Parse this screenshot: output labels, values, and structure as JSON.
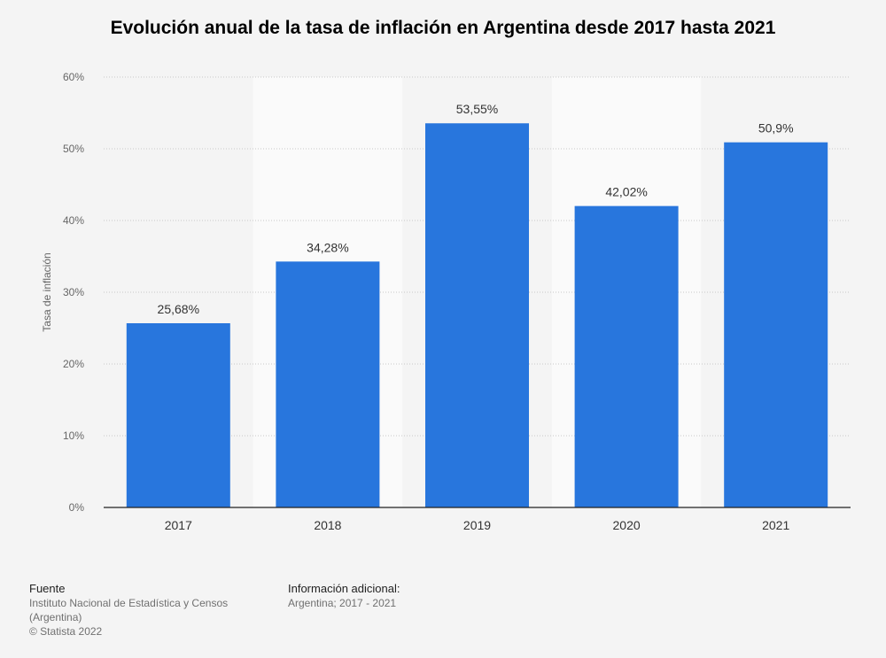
{
  "chart_data": {
    "type": "bar",
    "title": "Evolución anual de la tasa de inflación en Argentina desde 2017 hasta 2021",
    "xlabel": "",
    "ylabel": "Tasa de inflación",
    "categories": [
      "2017",
      "2018",
      "2019",
      "2020",
      "2021"
    ],
    "values": [
      25.68,
      34.28,
      53.55,
      42.02,
      50.9
    ],
    "data_labels": [
      "25,68%",
      "34,28%",
      "53,55%",
      "42,02%",
      "50,9%"
    ],
    "ylim": [
      0,
      60
    ],
    "yticks": [
      0,
      10,
      20,
      30,
      40,
      50,
      60
    ],
    "ytick_labels": [
      "0%",
      "10%",
      "20%",
      "30%",
      "40%",
      "50%",
      "60%"
    ],
    "grid": true,
    "bar_color": "#2876dd"
  },
  "footer": {
    "source_heading": "Fuente",
    "source_line1": "Instituto Nacional de Estadística y Censos",
    "source_line2": "(Argentina)",
    "copyright": "© Statista 2022",
    "info_heading": "Información adicional:",
    "info_text": "Argentina; 2017 - 2021"
  }
}
